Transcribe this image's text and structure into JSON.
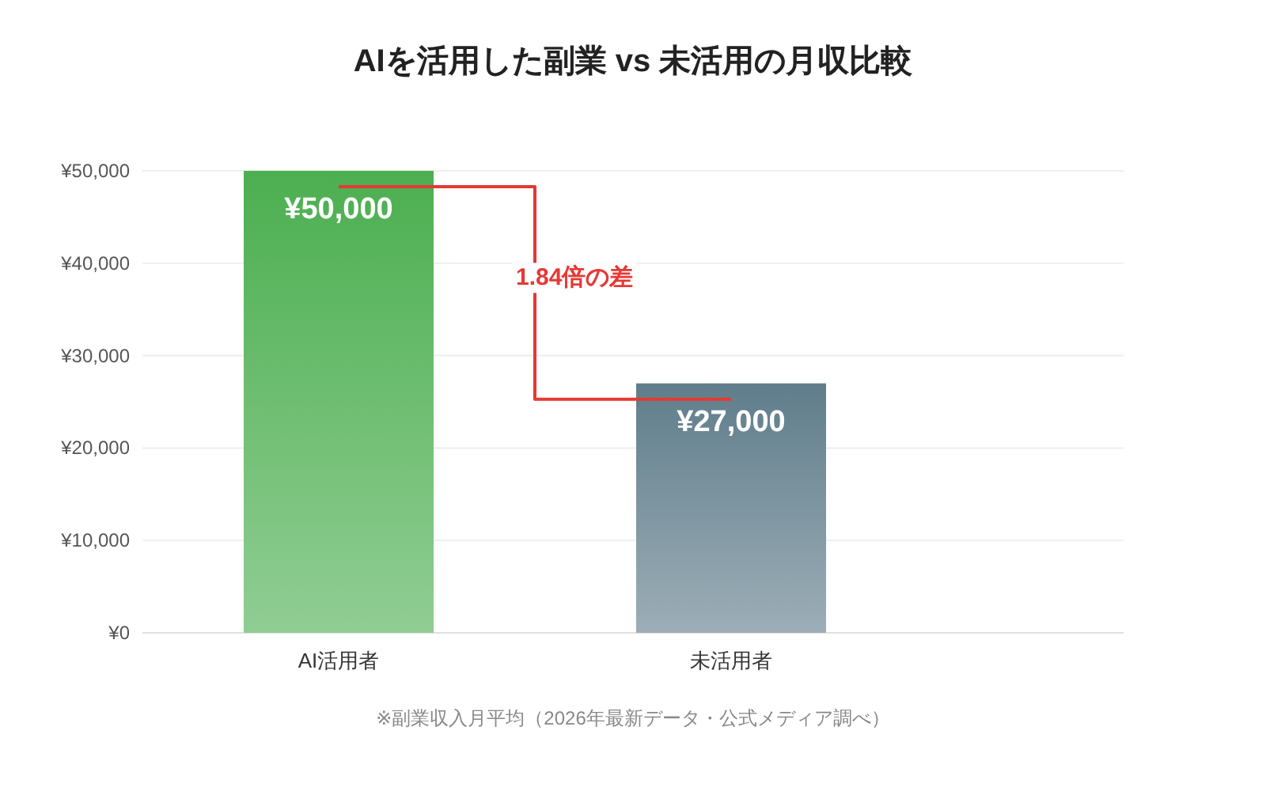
{
  "chart_data": {
    "type": "bar",
    "title": "AIを活用した副業 vs 未活用の月収比較",
    "categories": [
      "AI活用者",
      "未活用者"
    ],
    "values": [
      50000,
      27000
    ],
    "colors": [
      "#4caf50",
      "#607d8b"
    ],
    "value_labels": [
      "¥50,000",
      "¥27,000"
    ],
    "ylim": [
      0,
      50000
    ],
    "yticks": [
      {
        "value": 0,
        "label": "¥0"
      },
      {
        "value": 10000,
        "label": "¥10,000"
      },
      {
        "value": 20000,
        "label": "¥20,000"
      },
      {
        "value": 30000,
        "label": "¥30,000"
      },
      {
        "value": 40000,
        "label": "¥40,000"
      },
      {
        "value": 50000,
        "label": "¥50,000"
      }
    ],
    "grid": "y",
    "annotations": [
      "1.84倍の差",
      "※副業収入月平均（2026年最新データ・公式メディア調べ）"
    ]
  }
}
